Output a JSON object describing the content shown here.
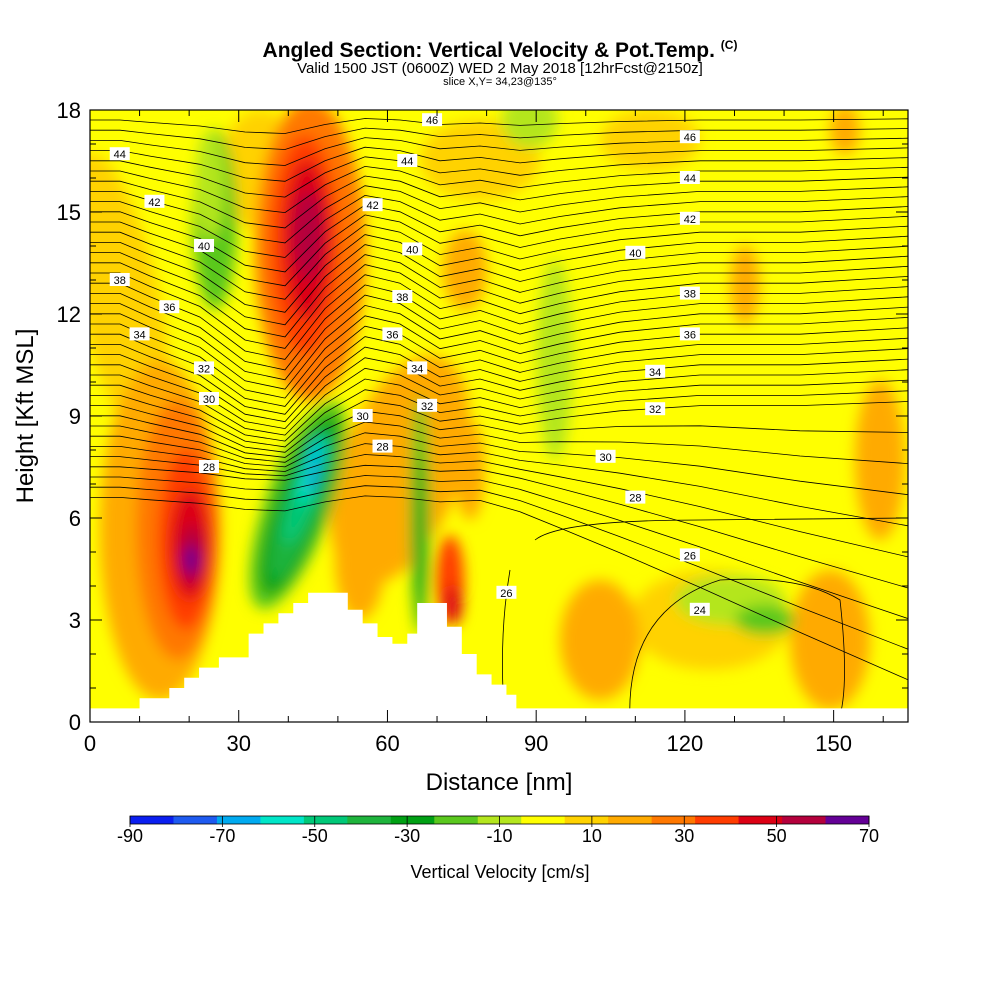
{
  "title": {
    "main": "Angled Section: Vertical Velocity & Pot.Temp.",
    "unit_tag": "(C)",
    "line2": "Valid 1500 JST (0600Z) WED 2 May 2018 [12hrFcst@2150z]",
    "line3": "slice X,Y= 34,23@135°"
  },
  "chart_data": {
    "type": "heatmap",
    "xlabel": "Distance [nm]",
    "ylabel": "Height [Kft MSL]",
    "xlim": [
      0,
      165
    ],
    "ylim": [
      0,
      18
    ],
    "xticks": [
      0,
      30,
      60,
      90,
      120,
      150
    ],
    "yticks": [
      0,
      3,
      6,
      9,
      12,
      15,
      18
    ],
    "colorbar": {
      "label": "Vertical Velocity [cm/s]",
      "ticks": [
        "-90",
        "-70",
        "-50",
        "-30",
        "-10",
        "10",
        "30",
        "50",
        "70"
      ],
      "levels": [
        -90,
        -80,
        -70,
        -60,
        -50,
        -40,
        -30,
        -20,
        -10,
        0,
        10,
        20,
        30,
        40,
        50,
        60,
        70
      ],
      "colors": [
        "#0a1ef0",
        "#1e5af0",
        "#00aaf0",
        "#00e6c8",
        "#00c878",
        "#1eb43c",
        "#00a014",
        "#5ac81e",
        "#b4e61e",
        "#ffff00",
        "#ffd200",
        "#ffaa00",
        "#ff7800",
        "#ff3c00",
        "#dc0014",
        "#b4003c",
        "#640096"
      ]
    },
    "terrain_profile": {
      "x": [
        0,
        10,
        10,
        16,
        16,
        19,
        19,
        22,
        22,
        26,
        26,
        32,
        32,
        35,
        35,
        38,
        38,
        41,
        41,
        44,
        44,
        48,
        48,
        52,
        52,
        55,
        55,
        58,
        58,
        61,
        61,
        64,
        64,
        66,
        66,
        72,
        72,
        75,
        75,
        78,
        78,
        81,
        81,
        84,
        84,
        86,
        86,
        165
      ],
      "height_kft": [
        0.4,
        0.4,
        0.7,
        0.7,
        1.0,
        1.0,
        1.3,
        1.3,
        1.6,
        1.6,
        1.9,
        1.9,
        2.6,
        2.6,
        2.9,
        2.9,
        3.2,
        3.2,
        3.5,
        3.5,
        3.8,
        3.8,
        3.8,
        3.8,
        3.3,
        3.3,
        2.9,
        2.9,
        2.5,
        2.5,
        2.3,
        2.3,
        2.6,
        2.6,
        3.5,
        3.5,
        2.8,
        2.8,
        2.0,
        2.0,
        1.4,
        1.4,
        1.1,
        1.1,
        0.8,
        0.8,
        0.4,
        0.4
      ]
    },
    "velocity_features": [
      {
        "name": "upper updraft",
        "x": 44,
        "y": 14,
        "peak": 50
      },
      {
        "name": "lower-left updraft",
        "x": 20,
        "y": 5,
        "peak": 60
      },
      {
        "name": "downdraft",
        "x": 45,
        "y": 7,
        "peak": -70
      },
      {
        "name": "lee updraft",
        "x": 74,
        "y": 3.3,
        "peak": 40
      }
    ],
    "isentrope_labels": [
      {
        "text": "46",
        "x": 69,
        "y": 17.7
      },
      {
        "text": "46",
        "x": 121,
        "y": 17.2
      },
      {
        "text": "44",
        "x": 6,
        "y": 16.7
      },
      {
        "text": "44",
        "x": 64,
        "y": 16.5
      },
      {
        "text": "44",
        "x": 121,
        "y": 16.0
      },
      {
        "text": "42",
        "x": 13,
        "y": 15.3
      },
      {
        "text": "42",
        "x": 57,
        "y": 15.2
      },
      {
        "text": "42",
        "x": 121,
        "y": 14.8
      },
      {
        "text": "40",
        "x": 23,
        "y": 14.0
      },
      {
        "text": "40",
        "x": 65,
        "y": 13.9
      },
      {
        "text": "40",
        "x": 110,
        "y": 13.8
      },
      {
        "text": "38",
        "x": 6,
        "y": 13.0
      },
      {
        "text": "38",
        "x": 63,
        "y": 12.5
      },
      {
        "text": "38",
        "x": 121,
        "y": 12.6
      },
      {
        "text": "36",
        "x": 16,
        "y": 12.2
      },
      {
        "text": "36",
        "x": 61,
        "y": 11.4
      },
      {
        "text": "36",
        "x": 121,
        "y": 11.4
      },
      {
        "text": "34",
        "x": 10,
        "y": 11.4
      },
      {
        "text": "34",
        "x": 66,
        "y": 10.4
      },
      {
        "text": "34",
        "x": 114,
        "y": 10.3
      },
      {
        "text": "32",
        "x": 23,
        "y": 10.4
      },
      {
        "text": "32",
        "x": 68,
        "y": 9.3
      },
      {
        "text": "32",
        "x": 114,
        "y": 9.2
      },
      {
        "text": "30",
        "x": 24,
        "y": 9.5
      },
      {
        "text": "30",
        "x": 55,
        "y": 9.0
      },
      {
        "text": "30",
        "x": 104,
        "y": 7.8
      },
      {
        "text": "28",
        "x": 24,
        "y": 7.5
      },
      {
        "text": "28",
        "x": 59,
        "y": 8.1
      },
      {
        "text": "28",
        "x": 110,
        "y": 6.6
      },
      {
        "text": "26",
        "x": 84,
        "y": 3.8
      },
      {
        "text": "26",
        "x": 121,
        "y": 4.9
      },
      {
        "text": "24",
        "x": 123,
        "y": 3.3
      }
    ]
  }
}
